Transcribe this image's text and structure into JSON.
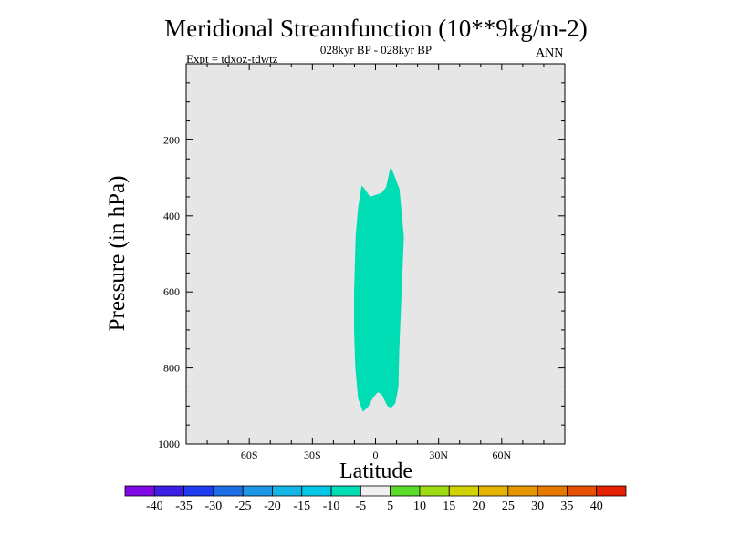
{
  "chart_data": {
    "type": "contour",
    "title": "Meridional Streamfunction (10**9kg/m-2)",
    "subtitle": "028kyr BP - 028kyr BP",
    "left_label": "Expt = tdxoz-tdwtz",
    "right_label": "ANN",
    "xlabel": "Latitude",
    "ylabel": "Pressure (in hPa)",
    "xlim": [
      -90,
      90
    ],
    "ylim": [
      1000,
      0
    ],
    "x_ticks": [
      {
        "value": -60,
        "label": "60S"
      },
      {
        "value": -30,
        "label": "30S"
      },
      {
        "value": 0,
        "label": "0"
      },
      {
        "value": 30,
        "label": "30N"
      },
      {
        "value": 60,
        "label": "60N"
      }
    ],
    "y_ticks": [
      {
        "value": 200,
        "label": "200"
      },
      {
        "value": 400,
        "label": "400"
      },
      {
        "value": 600,
        "label": "600"
      },
      {
        "value": 800,
        "label": "800"
      },
      {
        "value": 1000,
        "label": "1000"
      }
    ],
    "background_color": "#e6e6e6",
    "filled_region": {
      "value_range": [
        -10,
        -5
      ],
      "color": "#00dcb4",
      "outline": [
        [
          -6.6,
          320
        ],
        [
          -5,
          330
        ],
        [
          -2.6,
          350
        ],
        [
          0,
          345
        ],
        [
          2.8,
          340
        ],
        [
          5,
          325
        ],
        [
          7.2,
          270
        ],
        [
          9.4,
          300
        ],
        [
          11.4,
          330
        ],
        [
          12.4,
          390
        ],
        [
          13.5,
          455
        ],
        [
          12.4,
          600
        ],
        [
          11.3,
          750
        ],
        [
          10.9,
          850
        ],
        [
          9.4,
          893
        ],
        [
          7.4,
          905
        ],
        [
          5.6,
          900
        ],
        [
          2.8,
          868
        ],
        [
          1.0,
          864
        ],
        [
          -1.4,
          880
        ],
        [
          -3.6,
          903
        ],
        [
          -6.0,
          915
        ],
        [
          -8.3,
          880
        ],
        [
          -9.6,
          800
        ],
        [
          -10.2,
          700
        ],
        [
          -10.2,
          600
        ],
        [
          -9.4,
          450
        ],
        [
          -8.3,
          380
        ]
      ]
    },
    "colorbar": {
      "colors": [
        "#8208e6",
        "#3c1ee6",
        "#1e3cf0",
        "#1e6ee6",
        "#1e96e6",
        "#14b4e6",
        "#00c8e6",
        "#00dcb4",
        "#f0f0f0",
        "#5adc28",
        "#a0dc14",
        "#d2d200",
        "#e6b400",
        "#e69600",
        "#e67800",
        "#e65000",
        "#e62000"
      ],
      "labels": [
        "-40",
        "-35",
        "-30",
        "-25",
        "-20",
        "-15",
        "-10",
        "-5",
        "5",
        "10",
        "15",
        "20",
        "25",
        "30",
        "35",
        "40"
      ]
    }
  }
}
